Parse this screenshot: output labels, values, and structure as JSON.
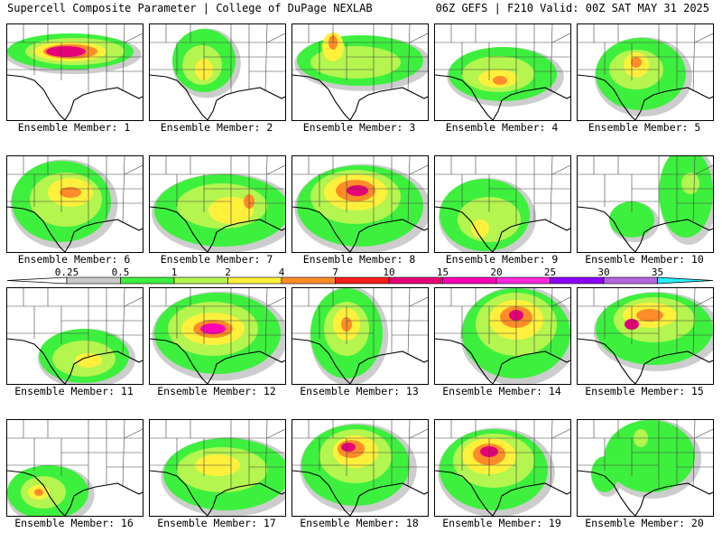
{
  "header": {
    "title": "Supercell Composite Parameter | College of DuPage NEXLAB",
    "run": "06Z GEFS | F210 Valid: 00Z SAT MAY 31 2025"
  },
  "panels": [
    {
      "label": "Ensemble Member: 1"
    },
    {
      "label": "Ensemble Member: 2"
    },
    {
      "label": "Ensemble Member: 3"
    },
    {
      "label": "Ensemble Member: 4"
    },
    {
      "label": "Ensemble Member: 5"
    },
    {
      "label": "Ensemble Member: 6"
    },
    {
      "label": "Ensemble Member: 7"
    },
    {
      "label": "Ensemble Member: 8"
    },
    {
      "label": "Ensemble Member: 9"
    },
    {
      "label": "Ensemble Member: 10"
    },
    {
      "label": "Ensemble Member: 11"
    },
    {
      "label": "Ensemble Member: 12"
    },
    {
      "label": "Ensemble Member: 13"
    },
    {
      "label": "Ensemble Member: 14"
    },
    {
      "label": "Ensemble Member: 15"
    },
    {
      "label": "Ensemble Member: 16"
    },
    {
      "label": "Ensemble Member: 17"
    },
    {
      "label": "Ensemble Member: 18"
    },
    {
      "label": "Ensemble Member: 19"
    },
    {
      "label": "Ensemble Member: 20"
    }
  ],
  "colorbar": {
    "ticks": [
      "0.25",
      "0.5",
      "1",
      "2",
      "4",
      "7",
      "10",
      "15",
      "20",
      "25",
      "30",
      "35"
    ],
    "colors": [
      "#c8c8c8",
      "#3ef03e",
      "#b4f550",
      "#fff03c",
      "#ff8c28",
      "#ff1e1e",
      "#e60078",
      "#ff00b4",
      "#ff28dc",
      "#8c00ff",
      "#b464dc",
      "#28f0ff"
    ]
  }
}
